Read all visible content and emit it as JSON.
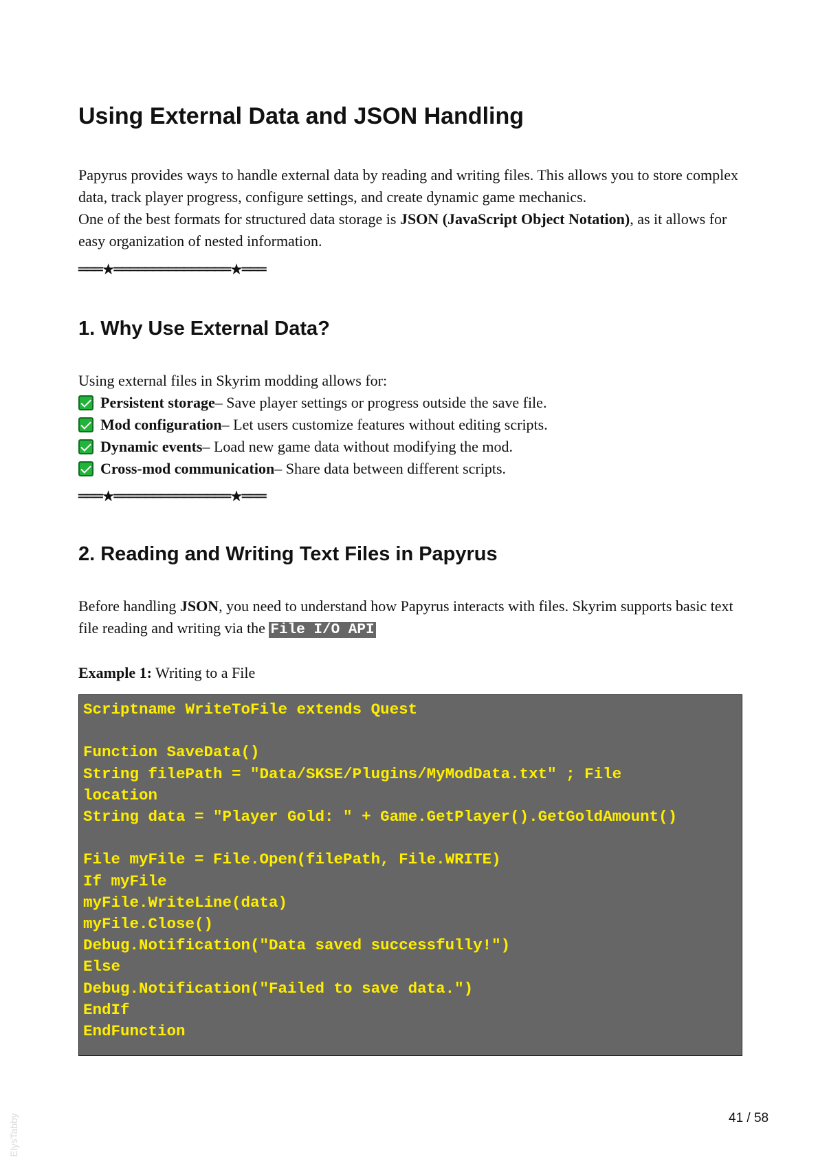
{
  "title": "Using External Data and JSON Handling",
  "intro": {
    "line1": "Papyrus provides ways to handle external data by reading and writing files. This allows you to store complex data, track player progress, configure settings, and create dynamic game mechanics.",
    "line2_before": "One of the best formats for structured data storage is ",
    "line2_bold": "JSON (JavaScript Object Notation)",
    "line2_after": ", as it allows for easy organization of nested information."
  },
  "divider": "═══★═══════════════★═══",
  "section1": {
    "heading": "1. Why Use External Data?",
    "lead": "Using external files in Skyrim modding allows for:",
    "items": [
      {
        "bold": "Persistent storage",
        "text": " – Save player settings or progress outside the save file."
      },
      {
        "bold": "Mod configuration",
        "text": " – Let users customize features without editing scripts."
      },
      {
        "bold": "Dynamic events",
        "text": " – Load new game data without modifying the mod."
      },
      {
        "bold": "Cross-mod communication",
        "text": " – Share data between different scripts."
      }
    ]
  },
  "section2": {
    "heading": "2. Reading and Writing Text Files in Papyrus",
    "para_before": "Before handling ",
    "para_bold": "JSON",
    "para_after": ", you need to understand how Papyrus interacts with files. Skyrim supports basic text file reading and writing via the ",
    "para_code": "File I/O API",
    "example_label": "Example 1:",
    "example_title": " Writing to a File",
    "code": "Scriptname WriteToFile extends Quest\n\nFunction SaveData()\nString filePath = \"Data/SKSE/Plugins/MyModData.txt\" ; File\nlocation\nString data = \"Player Gold: \" + Game.GetPlayer().GetGoldAmount()\n\nFile myFile = File.Open(filePath, File.WRITE)\nIf myFile\nmyFile.WriteLine(data)\nmyFile.Close()\nDebug.Notification(\"Data saved successfully!\")\nElse\nDebug.Notification(\"Failed to save data.\")\nEndIf\nEndFunction"
  },
  "page_number": "41 / 58",
  "watermark": "ElysTabby"
}
